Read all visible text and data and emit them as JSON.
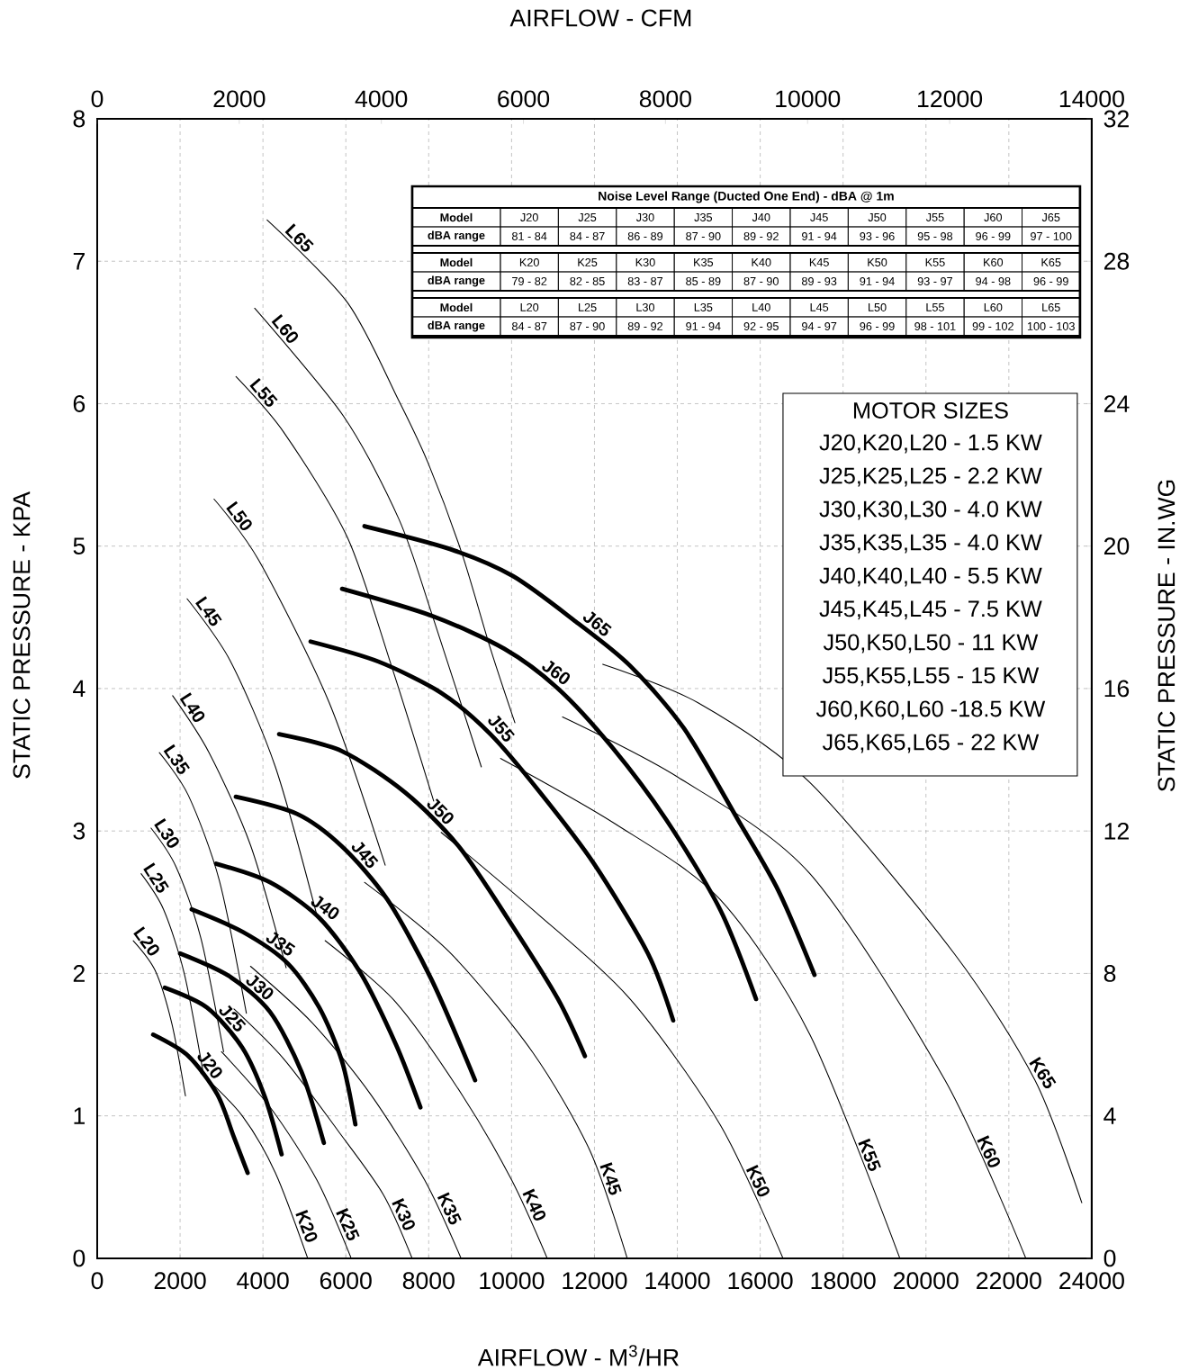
{
  "chart_data": {
    "type": "line",
    "xlabel": "AIRFLOW - M$^{3}$/HR",
    "x2label": "AIRFLOW - CFM",
    "ylabel": "STATIC PRESSURE - KPA",
    "y2label": "STATIC PRESSURE - IN.WG",
    "xlim": [
      0,
      24000
    ],
    "xticks": [
      0,
      2000,
      4000,
      6000,
      8000,
      10000,
      12000,
      14000,
      16000,
      18000,
      20000,
      22000,
      24000
    ],
    "ylim": [
      0,
      8
    ],
    "yticks": [
      0,
      1,
      2,
      3,
      4,
      5,
      6,
      7,
      8
    ],
    "x2lim": [
      0,
      14000
    ],
    "x2ticks": [
      0,
      2000,
      4000,
      6000,
      8000,
      10000,
      12000,
      14000
    ],
    "y2lim": [
      0,
      32
    ],
    "y2ticks": [
      0,
      4,
      8,
      12,
      16,
      20,
      24,
      28,
      32
    ],
    "grid": true,
    "series": [
      {
        "name": "J20",
        "color": "#000000",
        "x": [
          1350,
          2200,
          2900,
          3300,
          3630
        ],
        "values": [
          1.57,
          1.42,
          1.15,
          0.85,
          0.6
        ]
      },
      {
        "name": "J25",
        "color": "#000000",
        "x": [
          1630,
          2650,
          3500,
          4050,
          4450
        ],
        "values": [
          1.9,
          1.76,
          1.48,
          1.13,
          0.73
        ]
      },
      {
        "name": "J30",
        "color": "#000000",
        "x": [
          2000,
          3190,
          4170,
          4930,
          5470
        ],
        "values": [
          2.14,
          1.98,
          1.73,
          1.31,
          0.81
        ]
      },
      {
        "name": "J35",
        "color": "#000000",
        "x": [
          2280,
          3520,
          4600,
          5360,
          5910,
          6230
        ],
        "values": [
          2.45,
          2.29,
          2.07,
          1.76,
          1.38,
          0.94
        ]
      },
      {
        "name": "J40",
        "color": "#000000",
        "x": [
          2870,
          4170,
          5360,
          6340,
          7210,
          7800
        ],
        "values": [
          2.77,
          2.64,
          2.39,
          2.01,
          1.5,
          1.06
        ]
      },
      {
        "name": "J45",
        "color": "#000000",
        "x": [
          3345,
          4820,
          5910,
          7000,
          8080,
          9120
        ],
        "values": [
          3.24,
          3.12,
          2.89,
          2.52,
          1.95,
          1.25
        ]
      },
      {
        "name": "J50",
        "color": "#000000",
        "x": [
          4390,
          5910,
          7430,
          8730,
          10030,
          11120,
          11770
        ],
        "values": [
          3.68,
          3.56,
          3.27,
          2.89,
          2.33,
          1.82,
          1.42
        ]
      },
      {
        "name": "J55",
        "color": "#000000",
        "x": [
          5150,
          6780,
          8300,
          9490,
          10690,
          11990,
          13290,
          13900
        ],
        "values": [
          4.33,
          4.19,
          3.97,
          3.68,
          3.27,
          2.77,
          2.14,
          1.67
        ]
      },
      {
        "name": "J60",
        "color": "#000000",
        "x": [
          5910,
          8080,
          9820,
          11120,
          12420,
          13730,
          15030,
          15900
        ],
        "values": [
          4.7,
          4.51,
          4.28,
          4.0,
          3.59,
          3.08,
          2.45,
          1.82
        ]
      },
      {
        "name": "J65",
        "color": "#000000",
        "x": [
          6450,
          8510,
          10030,
          11550,
          12860,
          14160,
          15460,
          16440,
          17310
        ],
        "values": [
          5.14,
          4.98,
          4.79,
          4.47,
          4.16,
          3.72,
          3.08,
          2.58,
          1.99
        ]
      },
      {
        "name": "K20",
        "color": "#000000",
        "x": [
          2500,
          3500,
          4300,
          5080
        ],
        "values": [
          1.3,
          1.0,
          0.6,
          0
        ]
      },
      {
        "name": "K25",
        "color": "#000000",
        "x": [
          3000,
          4200,
          5300,
          6130
        ],
        "values": [
          1.45,
          1.05,
          0.55,
          0
        ]
      },
      {
        "name": "K30",
        "color": "#000000",
        "x": [
          3300,
          4500,
          5800,
          6900,
          7600
        ],
        "values": [
          1.75,
          1.4,
          0.9,
          0.45,
          0
        ]
      },
      {
        "name": "K35",
        "color": "#000000",
        "x": [
          3700,
          5200,
          6600,
          7900,
          8780
        ],
        "values": [
          2.05,
          1.65,
          1.15,
          0.55,
          0
        ]
      },
      {
        "name": "K40",
        "color": "#000000",
        "x": [
          5500,
          7200,
          8800,
          10000,
          10860
        ],
        "values": [
          2.23,
          1.8,
          1.15,
          0.55,
          0
        ]
      },
      {
        "name": "K45",
        "color": "#000000",
        "x": [
          6450,
          8500,
          10500,
          11900,
          12790
        ],
        "values": [
          2.64,
          2.15,
          1.45,
          0.75,
          0
        ]
      },
      {
        "name": "K50",
        "color": "#000000",
        "x": [
          8300,
          10500,
          12860,
          15030,
          16550
        ],
        "values": [
          2.99,
          2.45,
          1.82,
          0.94,
          0
        ]
      },
      {
        "name": "K55",
        "color": "#000000",
        "x": [
          9730,
          12500,
          15030,
          17200,
          19370
        ],
        "values": [
          3.51,
          3.05,
          2.52,
          1.57,
          0
        ]
      },
      {
        "name": "K60",
        "color": "#000000",
        "x": [
          11230,
          14000,
          17200,
          20460,
          22410
        ],
        "values": [
          3.8,
          3.38,
          2.7,
          1.25,
          0
        ]
      },
      {
        "name": "K65",
        "color": "#000000",
        "x": [
          12200,
          14500,
          17200,
          20680,
          22630,
          23760
        ],
        "values": [
          4.17,
          3.9,
          3.34,
          2.14,
          1.25,
          0.39
        ]
      },
      {
        "name": "L20",
        "color": "#000000",
        "x": [
          870,
          1400,
          1800,
          2130
        ],
        "values": [
          2.23,
          2.02,
          1.65,
          1.14
        ]
      },
      {
        "name": "L25",
        "color": "#000000",
        "x": [
          1060,
          1600,
          2100,
          2560
        ],
        "values": [
          2.7,
          2.45,
          2.0,
          1.3
        ]
      },
      {
        "name": "L30",
        "color": "#000000",
        "x": [
          1300,
          1900,
          2500,
          3050
        ],
        "values": [
          3.02,
          2.75,
          2.25,
          1.45
        ]
      },
      {
        "name": "L35",
        "color": "#000000",
        "x": [
          1500,
          2200,
          2950,
          3600
        ],
        "values": [
          3.55,
          3.25,
          2.65,
          1.72
        ]
      },
      {
        "name": "L40",
        "color": "#000000",
        "x": [
          1820,
          2700,
          3700,
          4560
        ],
        "values": [
          3.95,
          3.55,
          2.9,
          2.04
        ]
      },
      {
        "name": "L45",
        "color": "#000000",
        "x": [
          2170,
          3200,
          4300,
          5300
        ],
        "values": [
          4.63,
          4.2,
          3.45,
          2.41
        ]
      },
      {
        "name": "L50",
        "color": "#000000",
        "x": [
          2820,
          3900,
          5600,
          6950
        ],
        "values": [
          5.33,
          4.9,
          3.9,
          2.76
        ]
      },
      {
        "name": "L55",
        "color": "#000000",
        "x": [
          3350,
          4500,
          6040,
          7100,
          8120
        ],
        "values": [
          6.19,
          5.8,
          5.06,
          4.16,
          3.21
        ]
      },
      {
        "name": "L60",
        "color": "#000000",
        "x": [
          3800,
          5950,
          7280,
          8080,
          9270
        ],
        "values": [
          6.67,
          5.91,
          5.19,
          4.52,
          3.45
        ]
      },
      {
        "name": "L65",
        "color": "#000000",
        "x": [
          4100,
          6040,
          7280,
          7990,
          8800,
          9490,
          10080
        ],
        "values": [
          7.29,
          6.71,
          6.02,
          5.58,
          4.95,
          4.28,
          3.76
        ]
      }
    ],
    "annotations": [
      "Noise Level Range (Ducted One End) - dBA @ 1m",
      "Model",
      "dBA range",
      "81 - 84",
      "84 - 87",
      "86 - 89",
      "87 - 90",
      "89 - 92",
      "91 - 94",
      "93 - 96",
      "95 - 98",
      "96 - 99",
      "97 - 100",
      "79 - 82",
      "82 - 85",
      "83 - 87",
      "85 - 89",
      "87 - 90",
      "89 - 93",
      "91 - 94",
      "93 - 97",
      "94 - 98",
      "96 - 99",
      "84 - 87",
      "87 - 90",
      "89 - 92",
      "91 - 94",
      "92 - 95",
      "94 - 97",
      "96 - 99",
      "98 - 101",
      "99 - 102",
      "100 - 103",
      "MOTOR SIZES",
      "J20,K20,L20 - 1.5 KW",
      "J25,K25,L25 - 2.2 KW",
      "J30,K30,L30 - 4.0 KW",
      "J35,K35,L35 - 4.0 KW",
      "J40,K40,L40 - 5.5 KW",
      "J45,K45,L45 - 7.5 KW",
      "J50,K50,L50 - 11 KW",
      "J55,K55,L55 - 15 KW",
      "J60,K60,L60 -18.5 KW",
      "J65,K65,L65 - 22 KW"
    ]
  }
}
